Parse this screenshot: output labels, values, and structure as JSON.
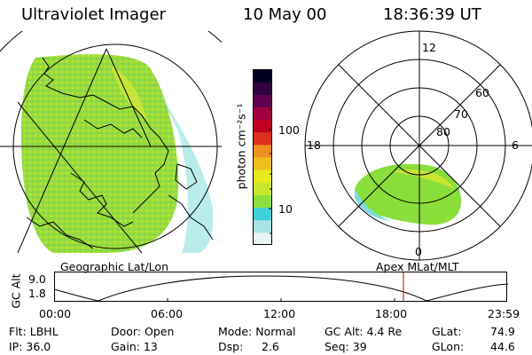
{
  "header": {
    "instrument": "Ultraviolet Imager",
    "date": "10 May 00",
    "time": "18:36:39 UT"
  },
  "colorbar": {
    "unit_label": "photon cm⁻²s⁻¹",
    "ticks": [
      "100",
      "10"
    ],
    "colors": [
      "#e8f4f4",
      "#a8e4e4",
      "#40d0d8",
      "#8ee040",
      "#c8e830",
      "#e8e820",
      "#f0c020",
      "#f09020",
      "#e03020",
      "#c00020",
      "#a00040",
      "#600050",
      "#300040",
      "#000020"
    ]
  },
  "polar_plot": {
    "latitude_labels": [
      "60",
      "70",
      "80"
    ],
    "mlt_labels": [
      "12",
      "18",
      "6",
      "0"
    ]
  },
  "panel_labels": {
    "left": "Geographic Lat/Lon",
    "right": "Apex MLat/MLT"
  },
  "altitude_plot": {
    "ylabel": "GC Alt",
    "yticks": [
      "9.0",
      "1.8"
    ],
    "xticks": [
      "00:00",
      "06:00",
      "12:00",
      "18:00",
      "23:59"
    ],
    "marker_color": "#c00000"
  },
  "info": {
    "flt": "Flt: LBHL",
    "ip": "IP: 36.0",
    "door": "Door: Open",
    "gain": "Gain: 13",
    "mode": "Mode: Normal",
    "dsp_label": "Dsp:",
    "dsp_value": "2.6",
    "gc_alt": "GC Alt: 4.4 Re",
    "seq": "Seq: 39",
    "glat_label": "GLat:",
    "glat_value": "74.9",
    "glon_label": "GLon:",
    "glon_value": "44.6"
  }
}
